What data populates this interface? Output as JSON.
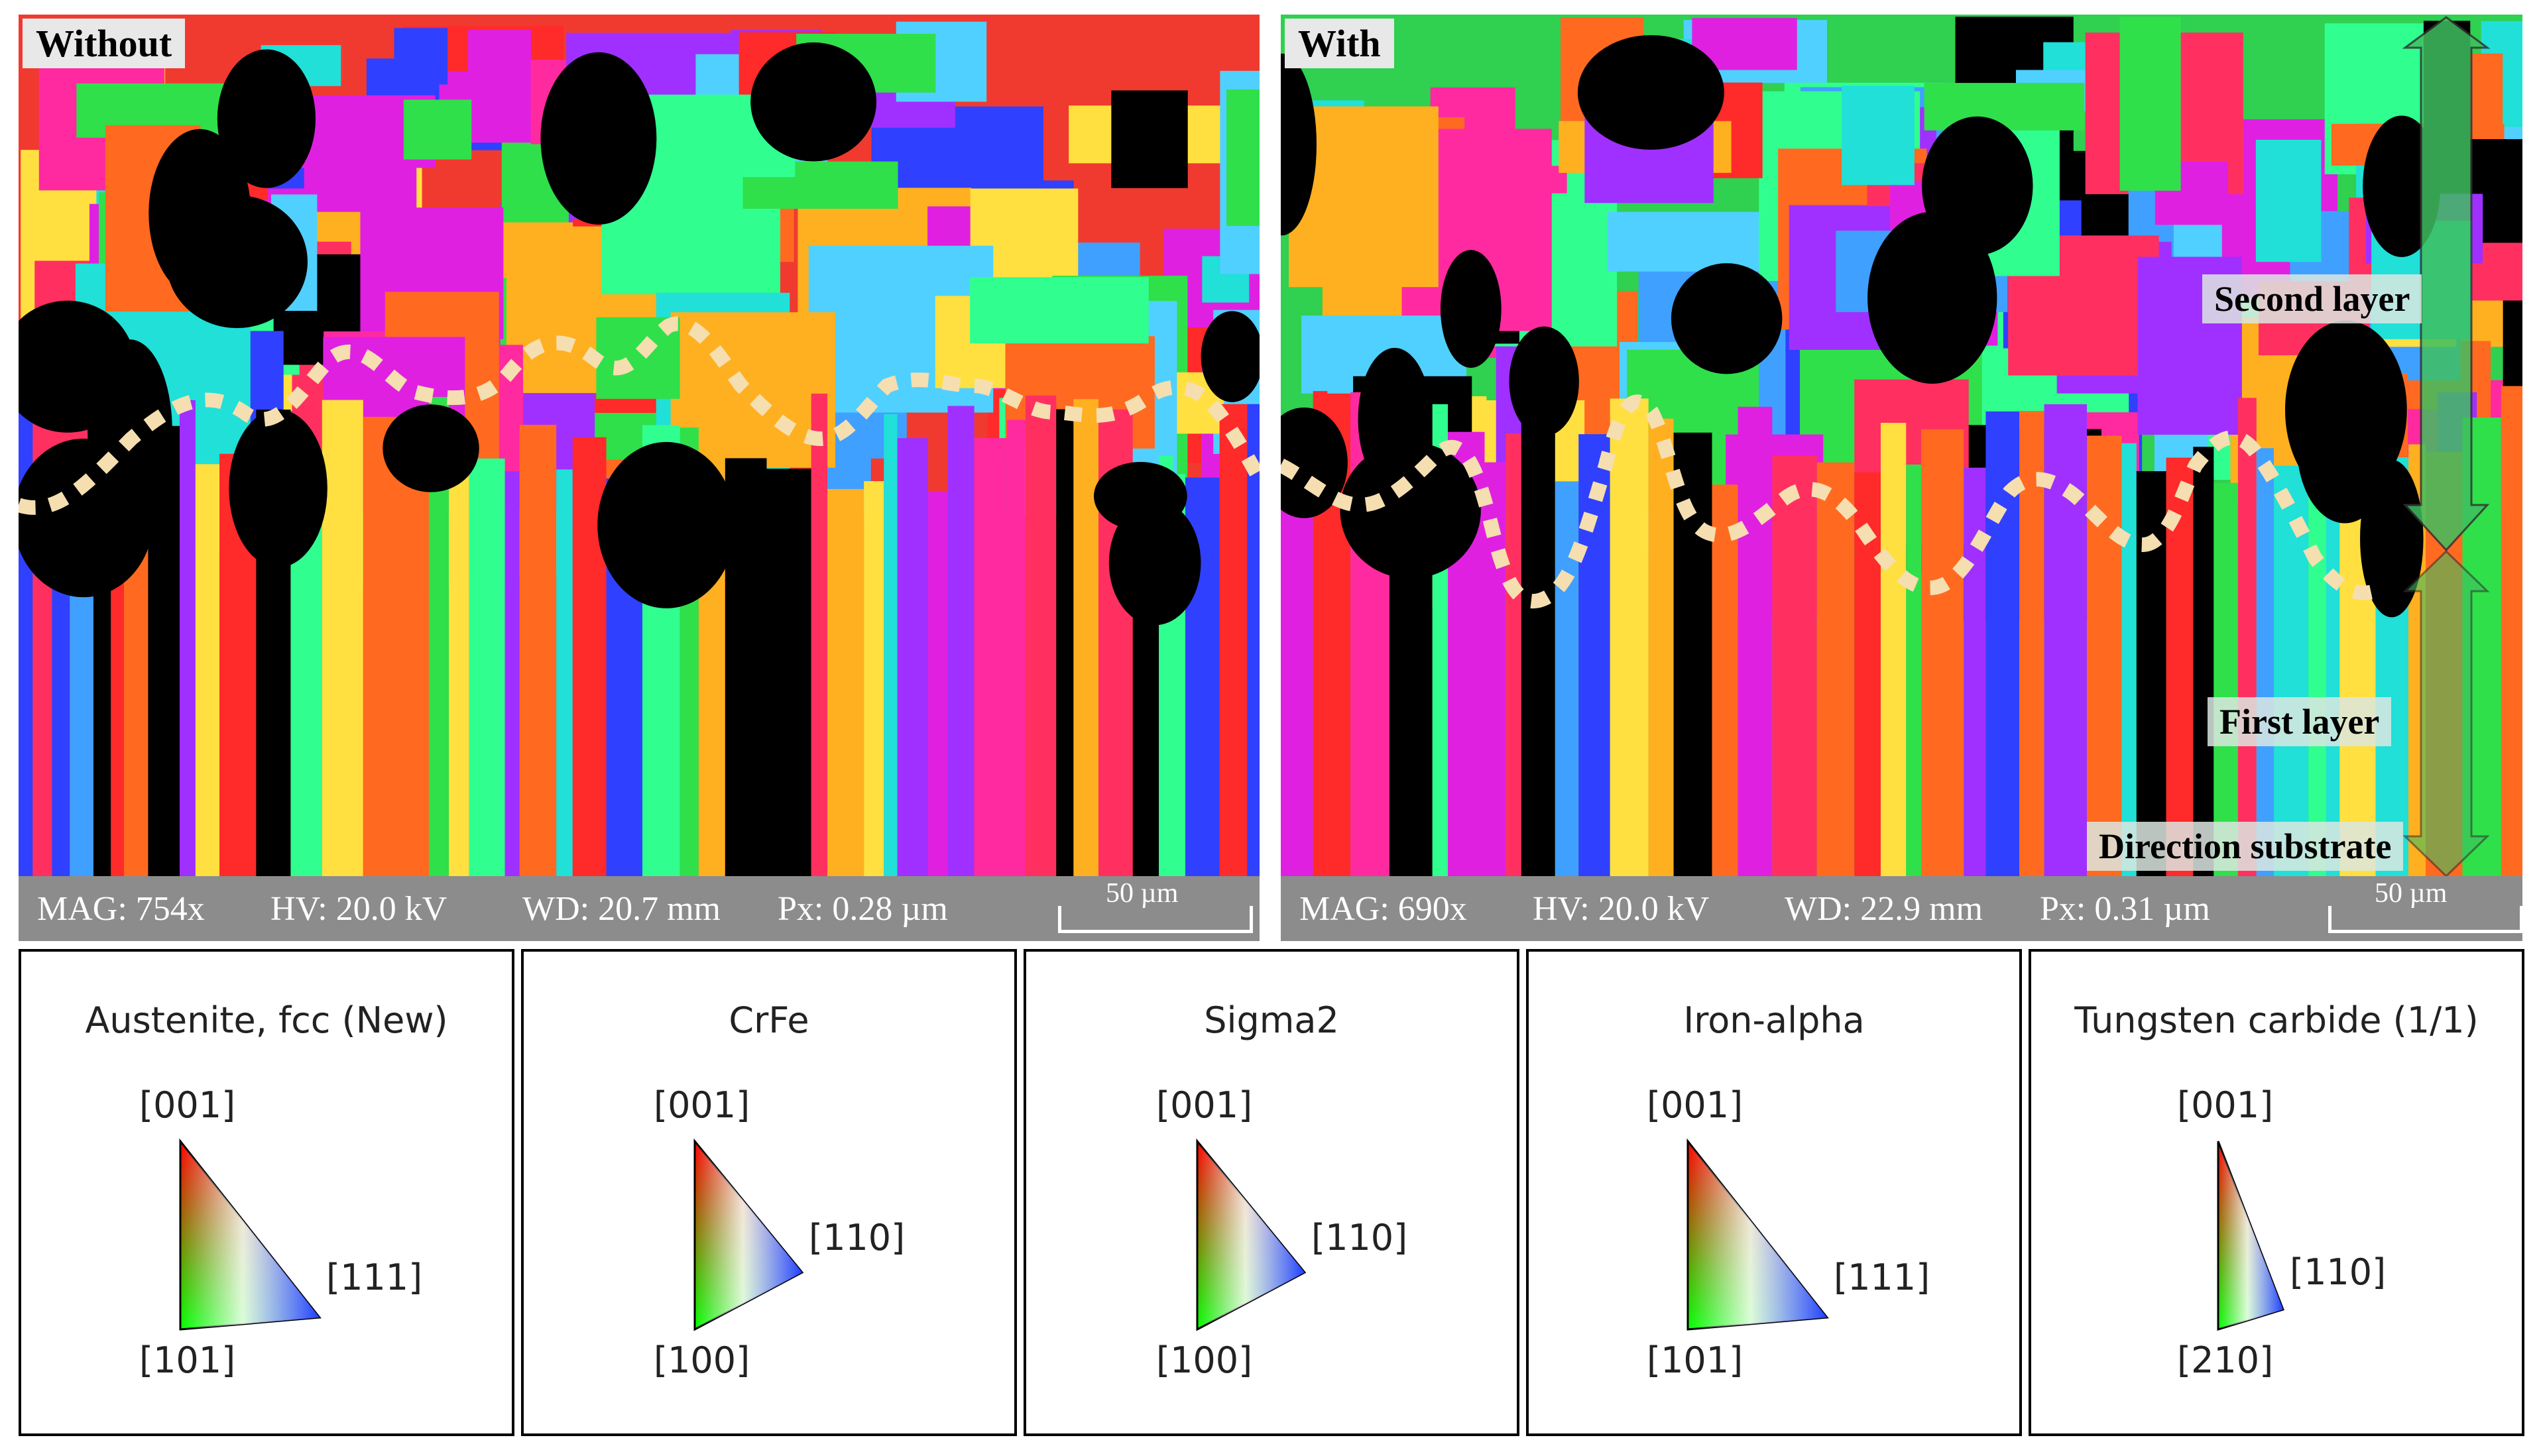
{
  "panels": {
    "left": {
      "tag": "Without",
      "mag": "MAG: 754x",
      "hv": "HV: 20.0 kV",
      "wd": "WD: 20.7 mm",
      "px": "Px: 0.28 µm",
      "scale": "50 µm"
    },
    "right": {
      "tag": "With",
      "mag": "MAG: 690x",
      "hv": "HV: 20.0 kV",
      "wd": "WD: 22.9 mm",
      "px": "Px: 0.31 µm",
      "scale": "50 µm",
      "second_layer": "Second layer",
      "first_layer": "First layer",
      "direction": "Direction substrate"
    }
  },
  "legends": [
    {
      "title": "Austenite, fcc (New)",
      "top": "[001]",
      "right": "[111]",
      "bottom": "[101]",
      "shape": "wide"
    },
    {
      "title": "CrFe",
      "top": "[001]",
      "right": "[110]",
      "bottom": "[100]",
      "shape": "narrow"
    },
    {
      "title": "Sigma2",
      "top": "[001]",
      "right": "[110]",
      "bottom": "[100]",
      "shape": "narrow"
    },
    {
      "title": "Iron-alpha",
      "top": "[001]",
      "right": "[111]",
      "bottom": "[101]",
      "shape": "wide"
    },
    {
      "title": "Tungsten carbide (1/1)",
      "top": "[001]",
      "right": "[110]",
      "bottom": "[210]",
      "shape": "slim"
    }
  ],
  "colors": {
    "boundary_dots": "#f5deb0",
    "arrow_fill": "#3fbf60",
    "info_bar": "#8c8c8c"
  }
}
